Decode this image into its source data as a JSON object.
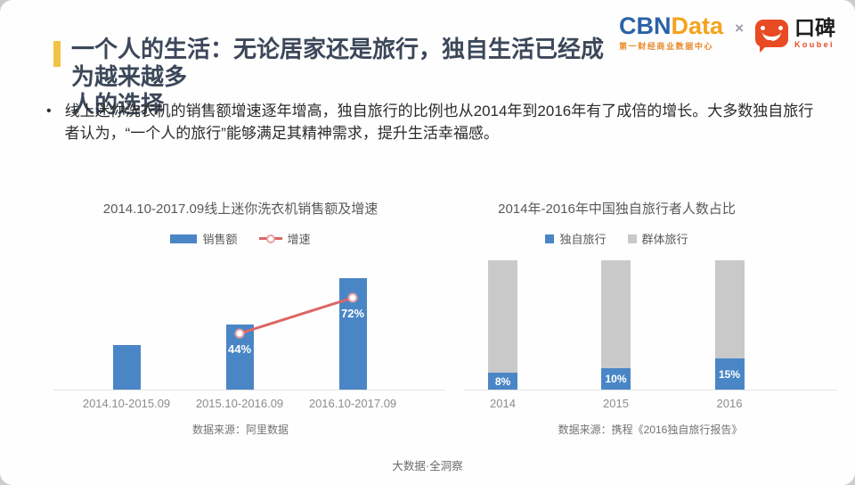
{
  "header": {
    "title_line1": "一个人的生活：无论居家还是旅行，独自生活已经成为越来越多",
    "title_line2": "人的选择",
    "bullet": "线上迷你洗衣机的销售额增速逐年增高，独自旅行的比例也从2014年到2016年有了成倍的增长。大多数独自旅行者认为，“一个人的旅行”能够满足其精神需求，提升生活幸福感。",
    "logos": {
      "cbn": "CBN",
      "data": "Data",
      "cbn_subtitle": "第一财经商业数据中心",
      "times": "×",
      "koubei_cn": "口碑",
      "koubei_en": "Koubei"
    }
  },
  "colors": {
    "accent_yellow": "#f2c246",
    "title_navy": "#3c4859",
    "bar_blue": "#4a86c6",
    "bar_gray": "#c9c9c9",
    "line_red": "#dd6666",
    "cbn_blue": "#2a62a8",
    "cbn_orange": "#f6a21d",
    "koubei_orange": "#e84a23"
  },
  "chart_data": [
    {
      "id": "mini-washer-sales",
      "type": "bar-line",
      "title": "2014.10-2017.09线上迷你洗衣机销售额及增速",
      "categories": [
        "2014.10-2015.09",
        "2015.10-2016.09",
        "2016.10-2017.09"
      ],
      "series": [
        {
          "name": "销售额",
          "type": "bar",
          "values": [
            100,
            144,
            248
          ],
          "note": "value axis hidden; relative index estimated from bar heights and growth labels",
          "color": "#4a86c6"
        },
        {
          "name": "增速",
          "type": "line",
          "values": [
            null,
            44,
            72
          ],
          "labels": [
            "",
            "44%",
            "72%"
          ],
          "unit": "%",
          "color": "#dd6666",
          "marker": {
            "fill": "#ffffff",
            "stroke": "#e8a0a0"
          }
        }
      ],
      "legend_position": "top",
      "grid": false,
      "value_axis_visible": false,
      "source": "数据来源：阿里数据"
    },
    {
      "id": "solo-traveler-share",
      "type": "stacked-bar",
      "title": "2014年-2016年中国独自旅行者人数占比",
      "categories": [
        "2014",
        "2015",
        "2016"
      ],
      "series": [
        {
          "name": "独自旅行",
          "values": [
            8,
            10,
            15
          ],
          "labels": [
            "8%",
            "10%",
            "15%"
          ],
          "color": "#4a86c6"
        },
        {
          "name": "群体旅行",
          "values": [
            92,
            90,
            85
          ],
          "color": "#c9c9c9"
        }
      ],
      "unit": "%",
      "total": 100,
      "legend_position": "top",
      "grid": false,
      "source": "数据来源：携程《2016独自旅行报告》"
    }
  ],
  "page": {
    "footer": "大数据·全洞察"
  }
}
